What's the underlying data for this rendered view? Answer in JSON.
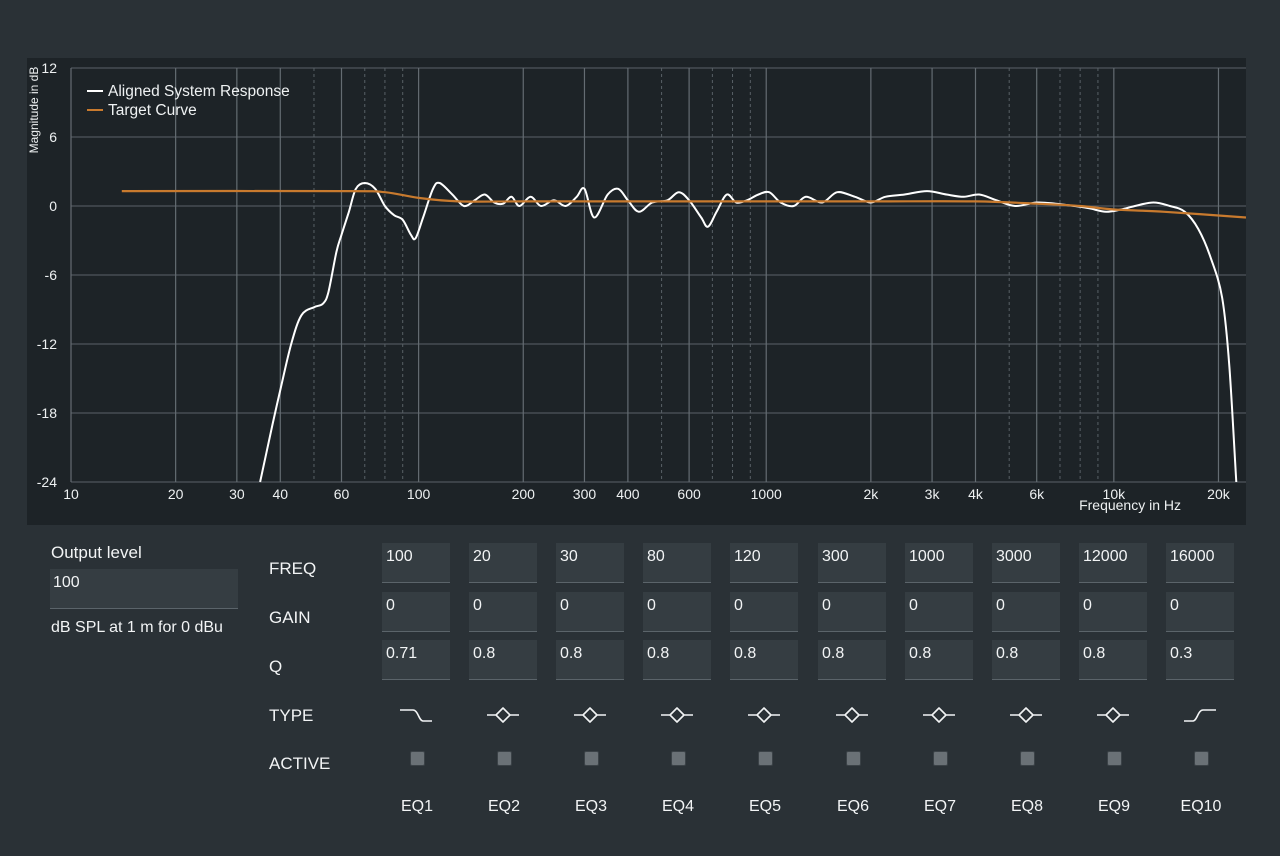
{
  "chart_data": {
    "type": "line",
    "xscale": "log",
    "xlim": [
      10,
      24000
    ],
    "ylim": [
      -24,
      12
    ],
    "xlabel": "Frequency in Hz",
    "ylabel": "Magnitude in dB",
    "y_ticks": [
      "12",
      "6",
      "0",
      "-6",
      "-12",
      "-18",
      "-24"
    ],
    "y_tick_values": [
      12,
      6,
      0,
      -6,
      -12,
      -18,
      -24
    ],
    "x_ticks": [
      "10",
      "20",
      "30",
      "40",
      "60",
      "100",
      "200",
      "300",
      "400",
      "600",
      "1000",
      "2k",
      "3k",
      "4k",
      "6k",
      "10k",
      "20k"
    ],
    "x_tick_values": [
      10,
      20,
      30,
      40,
      60,
      100,
      200,
      300,
      400,
      600,
      1000,
      2000,
      3000,
      4000,
      6000,
      10000,
      20000
    ],
    "grid": true,
    "legend_position": "top-left",
    "series": [
      {
        "name": "Aligned System Response",
        "color": "#ffffff",
        "points": [
          [
            35,
            -24
          ],
          [
            38,
            -19
          ],
          [
            40,
            -16
          ],
          [
            43,
            -12
          ],
          [
            46,
            -9.5
          ],
          [
            50,
            -8.8
          ],
          [
            53,
            -8.5
          ],
          [
            55,
            -7.5
          ],
          [
            58,
            -4
          ],
          [
            60,
            -2.5
          ],
          [
            63,
            -0.5
          ],
          [
            66,
            1.5
          ],
          [
            70,
            2
          ],
          [
            75,
            1.5
          ],
          [
            80,
            0
          ],
          [
            85,
            -0.8
          ],
          [
            90,
            -1.2
          ],
          [
            95,
            -2.5
          ],
          [
            98,
            -2.8
          ],
          [
            103,
            -1
          ],
          [
            110,
            1.5
          ],
          [
            115,
            2
          ],
          [
            125,
            1
          ],
          [
            135,
            0
          ],
          [
            145,
            0.5
          ],
          [
            155,
            1
          ],
          [
            165,
            0.3
          ],
          [
            175,
            0.2
          ],
          [
            185,
            0.8
          ],
          [
            195,
            0
          ],
          [
            210,
            0.8
          ],
          [
            225,
            0
          ],
          [
            245,
            0.5
          ],
          [
            265,
            0
          ],
          [
            285,
            0.8
          ],
          [
            300,
            1.5
          ],
          [
            320,
            -1
          ],
          [
            350,
            1
          ],
          [
            375,
            1.5
          ],
          [
            400,
            0.5
          ],
          [
            430,
            -0.5
          ],
          [
            470,
            0.3
          ],
          [
            520,
            0.5
          ],
          [
            560,
            1.2
          ],
          [
            600,
            0.5
          ],
          [
            650,
            -1
          ],
          [
            680,
            -1.8
          ],
          [
            720,
            -0.5
          ],
          [
            770,
            1
          ],
          [
            820,
            0.3
          ],
          [
            880,
            0.5
          ],
          [
            950,
            1
          ],
          [
            1020,
            1.2
          ],
          [
            1100,
            0.3
          ],
          [
            1200,
            0
          ],
          [
            1300,
            0.8
          ],
          [
            1450,
            0.3
          ],
          [
            1600,
            1.2
          ],
          [
            1800,
            0.8
          ],
          [
            2000,
            0.3
          ],
          [
            2200,
            0.8
          ],
          [
            2500,
            1
          ],
          [
            2900,
            1.3
          ],
          [
            3300,
            1
          ],
          [
            3700,
            0.8
          ],
          [
            4100,
            1
          ],
          [
            4600,
            0.5
          ],
          [
            5200,
            0
          ],
          [
            6000,
            0.3
          ],
          [
            6800,
            0.2
          ],
          [
            7700,
            0
          ],
          [
            8500,
            -0.2
          ],
          [
            9500,
            -0.5
          ],
          [
            10500,
            -0.3
          ],
          [
            11500,
            0
          ],
          [
            13000,
            0.3
          ],
          [
            14500,
            0
          ],
          [
            16000,
            -0.5
          ],
          [
            17500,
            -2
          ],
          [
            19000,
            -4.5
          ],
          [
            20500,
            -8
          ],
          [
            21500,
            -14
          ],
          [
            22500,
            -24
          ]
        ]
      },
      {
        "name": "Target Curve",
        "color": "#c87a2e",
        "points": [
          [
            14,
            1.3
          ],
          [
            60,
            1.3
          ],
          [
            80,
            1.2
          ],
          [
            100,
            0.7
          ],
          [
            130,
            0.4
          ],
          [
            200,
            0.4
          ],
          [
            500,
            0.4
          ],
          [
            1000,
            0.4
          ],
          [
            2000,
            0.4
          ],
          [
            4000,
            0.4
          ],
          [
            6000,
            0.2
          ],
          [
            8000,
            0
          ],
          [
            10000,
            -0.3
          ],
          [
            14000,
            -0.5
          ],
          [
            24000,
            -1
          ]
        ]
      }
    ]
  },
  "output": {
    "title": "Output level",
    "value": "100",
    "unit": "dB SPL at 1 m for 0 dBu"
  },
  "rows": {
    "freq": "FREQ",
    "gain": "GAIN",
    "q": "Q",
    "type": "TYPE",
    "active": "ACTIVE"
  },
  "eqs": [
    {
      "name": "EQ1",
      "freq": "100",
      "gain": "0",
      "q": "0.71",
      "type": "highpass",
      "active": false
    },
    {
      "name": "EQ2",
      "freq": "20",
      "gain": "0",
      "q": "0.8",
      "type": "peak",
      "active": false
    },
    {
      "name": "EQ3",
      "freq": "30",
      "gain": "0",
      "q": "0.8",
      "type": "peak",
      "active": false
    },
    {
      "name": "EQ4",
      "freq": "80",
      "gain": "0",
      "q": "0.8",
      "type": "peak",
      "active": false
    },
    {
      "name": "EQ5",
      "freq": "120",
      "gain": "0",
      "q": "0.8",
      "type": "peak",
      "active": false
    },
    {
      "name": "EQ6",
      "freq": "300",
      "gain": "0",
      "q": "0.8",
      "type": "peak",
      "active": false
    },
    {
      "name": "EQ7",
      "freq": "1000",
      "gain": "0",
      "q": "0.8",
      "type": "peak",
      "active": false
    },
    {
      "name": "EQ8",
      "freq": "3000",
      "gain": "0",
      "q": "0.8",
      "type": "peak",
      "active": false
    },
    {
      "name": "EQ9",
      "freq": "12000",
      "gain": "0",
      "q": "0.8",
      "type": "peak",
      "active": false
    },
    {
      "name": "EQ10",
      "freq": "16000",
      "gain": "0",
      "q": "0.3",
      "type": "lowpass",
      "active": false
    }
  ],
  "icons": {
    "highpass": "highpass-filter-icon",
    "peak": "peak-filter-icon",
    "lowpass": "lowpass-filter-icon"
  }
}
